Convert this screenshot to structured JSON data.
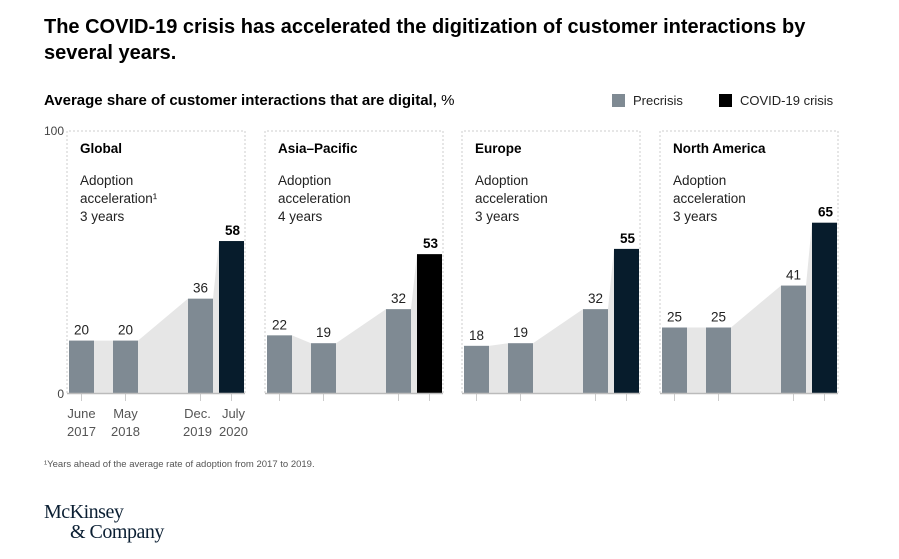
{
  "title": "The COVID-19 crisis has accelerated the digitization of customer interactions by several years.",
  "subtitle": "Average share of customer interactions that are digital,",
  "subtitle_unit": "%",
  "legend": [
    {
      "label": "Precrisis",
      "color": "#7f8a93"
    },
    {
      "label": "COVID-19 crisis",
      "color": "#000000"
    }
  ],
  "footnote": "¹Years ahead of the average rate of adoption from 2017 to 2019.",
  "logo": {
    "line1": "McKinsey",
    "line2": "& Company"
  },
  "chart_data": {
    "type": "bar",
    "title": "Average share of customer interactions that are digital, %",
    "ylabel": "%",
    "ylim": [
      0,
      100
    ],
    "yticks": [
      "0",
      "100"
    ],
    "categories": [
      {
        "month": "June",
        "year": "2017"
      },
      {
        "month": "May",
        "year": "2018"
      },
      {
        "month": "Dec.",
        "year": "2019"
      },
      {
        "month": "July",
        "year": "2020"
      }
    ],
    "category_roles": [
      "Precrisis",
      "Precrisis",
      "Precrisis",
      "COVID-19 crisis"
    ],
    "panels": [
      {
        "region": "Global",
        "note_label": "Adoption",
        "note_label2": "acceleration¹",
        "note_value": "3 years",
        "values": [
          20,
          20,
          36,
          58
        ],
        "crisis_color": "#071c2c"
      },
      {
        "region": "Asia–Pacific",
        "note_label": "Adoption",
        "note_label2": "acceleration",
        "note_value": "4 years",
        "values": [
          22,
          19,
          32,
          53
        ],
        "crisis_color": "#000000"
      },
      {
        "region": "Europe",
        "note_label": "Adoption",
        "note_label2": "acceleration",
        "note_value": "3 years",
        "values": [
          18,
          19,
          32,
          55
        ],
        "crisis_color": "#071c2c"
      },
      {
        "region": "North America",
        "note_label": "Adoption",
        "note_label2": "acceleration",
        "note_value": "3 years",
        "values": [
          25,
          25,
          41,
          65
        ],
        "crisis_color": "#071c2c"
      }
    ],
    "colors": {
      "precrisis": "#7f8a93",
      "area": "#e6e6e6",
      "axis": "#bbbbbb",
      "frame": "#cccccc"
    }
  }
}
